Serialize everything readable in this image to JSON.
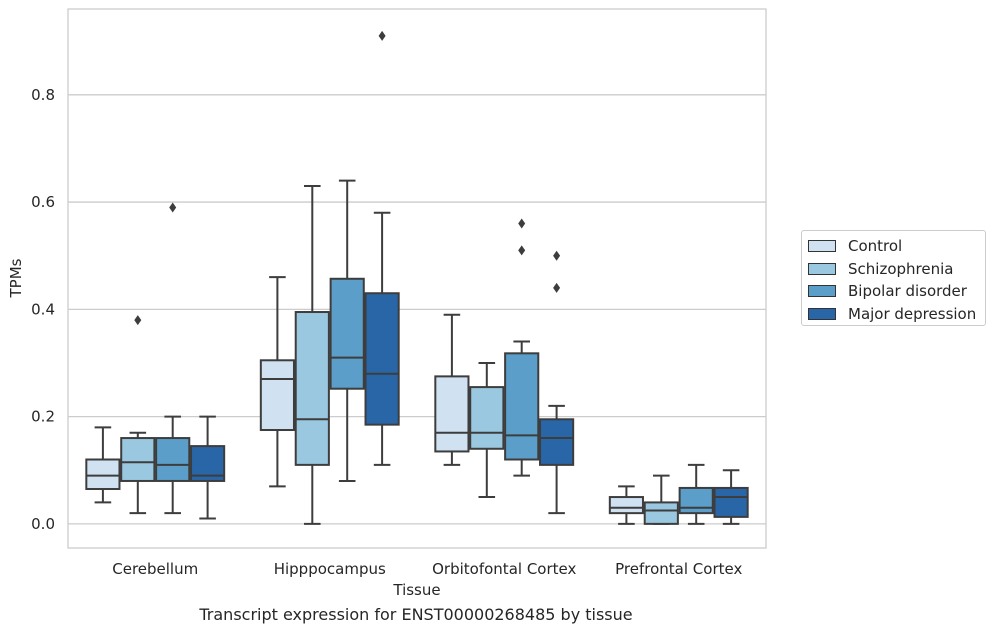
{
  "chart_data": {
    "type": "box",
    "title": "",
    "caption": "Transcript expression for ENST00000268485 by tissue",
    "xlabel": "Tissue",
    "ylabel": "TPMs",
    "ylim": [
      -0.045,
      0.96
    ],
    "yticks": [
      "0.0",
      "0.2",
      "0.4",
      "0.6",
      "0.8"
    ],
    "grid": "horizontal",
    "legend_position": "outside-right",
    "categories": [
      "Cerebellum",
      "Hipppocampus",
      "Orbitofontal Cortex",
      "Prefrontal Cortex"
    ],
    "series": [
      {
        "name": "Control",
        "color": "#d0e1f2",
        "boxes": [
          {
            "min": 0.04,
            "q1": 0.065,
            "median": 0.09,
            "q3": 0.12,
            "max": 0.18,
            "outliers": []
          },
          {
            "min": 0.07,
            "q1": 0.175,
            "median": 0.27,
            "q3": 0.305,
            "max": 0.46,
            "outliers": []
          },
          {
            "min": 0.11,
            "q1": 0.135,
            "median": 0.17,
            "q3": 0.275,
            "max": 0.39,
            "outliers": []
          },
          {
            "min": 0.0,
            "q1": 0.02,
            "median": 0.03,
            "q3": 0.05,
            "max": 0.07,
            "outliers": []
          }
        ]
      },
      {
        "name": "Schizophrenia",
        "color": "#9ac8e0",
        "boxes": [
          {
            "min": 0.02,
            "q1": 0.08,
            "median": 0.115,
            "q3": 0.16,
            "max": 0.17,
            "outliers": [
              0.38
            ]
          },
          {
            "min": 0.0,
            "q1": 0.11,
            "median": 0.195,
            "q3": 0.395,
            "max": 0.63,
            "outliers": []
          },
          {
            "min": 0.05,
            "q1": 0.14,
            "median": 0.17,
            "q3": 0.255,
            "max": 0.3,
            "outliers": []
          },
          {
            "min": 0.0,
            "q1": 0.0,
            "median": 0.025,
            "q3": 0.04,
            "max": 0.09,
            "outliers": []
          }
        ]
      },
      {
        "name": "Bipolar disorder",
        "color": "#5a9ec9",
        "boxes": [
          {
            "min": 0.02,
            "q1": 0.08,
            "median": 0.11,
            "q3": 0.16,
            "max": 0.2,
            "outliers": [
              0.59
            ]
          },
          {
            "min": 0.08,
            "q1": 0.252,
            "median": 0.31,
            "q3": 0.457,
            "max": 0.64,
            "outliers": []
          },
          {
            "min": 0.09,
            "q1": 0.12,
            "median": 0.165,
            "q3": 0.318,
            "max": 0.34,
            "outliers": [
              0.56,
              0.51
            ]
          },
          {
            "min": 0.0,
            "q1": 0.02,
            "median": 0.03,
            "q3": 0.067,
            "max": 0.11,
            "outliers": []
          }
        ]
      },
      {
        "name": "Major depression",
        "color": "#2966a8",
        "boxes": [
          {
            "min": 0.01,
            "q1": 0.08,
            "median": 0.09,
            "q3": 0.145,
            "max": 0.2,
            "outliers": []
          },
          {
            "min": 0.11,
            "q1": 0.185,
            "median": 0.28,
            "q3": 0.43,
            "max": 0.58,
            "outliers": [
              0.91
            ]
          },
          {
            "min": 0.02,
            "q1": 0.11,
            "median": 0.16,
            "q3": 0.195,
            "max": 0.22,
            "outliers": [
              0.5,
              0.44
            ]
          },
          {
            "min": 0.0,
            "q1": 0.013,
            "median": 0.05,
            "q3": 0.067,
            "max": 0.1,
            "outliers": []
          }
        ]
      }
    ]
  }
}
